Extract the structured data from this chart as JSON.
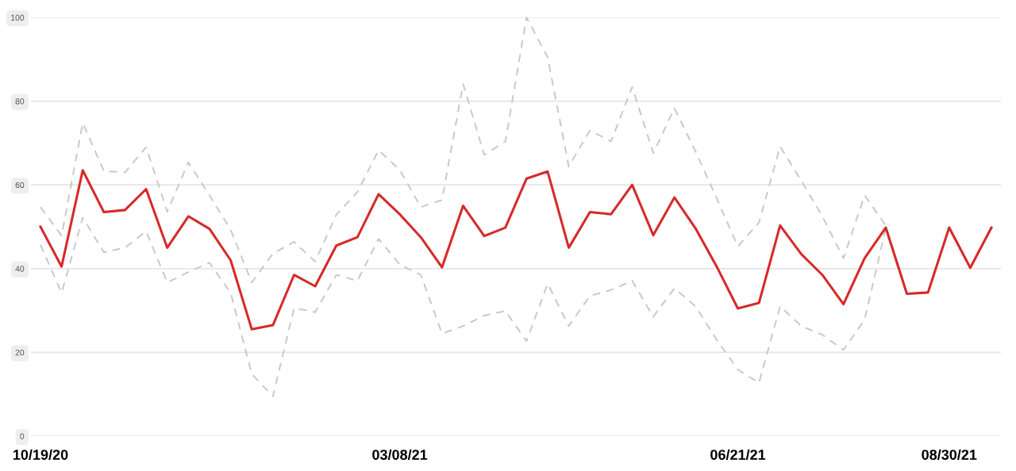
{
  "chart_data": {
    "type": "line",
    "categories": [
      "10/19/20",
      null,
      null,
      null,
      null,
      null,
      null,
      null,
      null,
      null,
      null,
      null,
      null,
      null,
      null,
      null,
      null,
      "03/08/21",
      null,
      null,
      null,
      null,
      null,
      null,
      null,
      null,
      null,
      null,
      null,
      null,
      null,
      null,
      null,
      "06/21/21",
      null,
      null,
      null,
      null,
      null,
      null,
      null,
      null,
      null,
      "08/30/21",
      null,
      null
    ],
    "series": [
      {
        "color": "#c8c8c8",
        "line_style": "dashed",
        "values": [
          54.7,
          47.9,
          74.8,
          63.3,
          63,
          69,
          53.6,
          65.4,
          57.5,
          49.3,
          36.7,
          43.6,
          46.4,
          41.7,
          52.9,
          58.3,
          68.3,
          63.6,
          54.7,
          56.4,
          84.1,
          67.2,
          70.4,
          100,
          90.5,
          64.4,
          73,
          70.4,
          83.4,
          67.6,
          78.3,
          68,
          56.8,
          45.3,
          51,
          69.2,
          61,
          52.5,
          42.5,
          57.5,
          50.3,
          34,
          34.3,
          49.8,
          40.2,
          49.8
        ]
      },
      {
        "color": "#c8c8c8",
        "line_style": "dashed",
        "values": [
          45.7,
          34.2,
          52.2,
          43.9,
          45,
          48.9,
          36.7,
          39.2,
          41.4,
          34.2,
          14.8,
          9.5,
          30.6,
          29.6,
          38.5,
          37.1,
          47.1,
          41,
          38.5,
          24.5,
          26.3,
          28.8,
          29.9,
          22.7,
          36.4,
          26.3,
          33.5,
          34.9,
          37.1,
          28.5,
          35.3,
          31,
          23,
          15.9,
          12.7,
          31,
          26.3,
          24.2,
          20.6,
          27.8,
          49.6,
          34,
          34.3,
          49.8,
          40.2,
          49.8
        ]
      },
      {
        "color": "#d62a2a",
        "line_style": "solid",
        "values": [
          50,
          40.5,
          63.5,
          53.5,
          54,
          59,
          45,
          52.5,
          49.5,
          42,
          25.5,
          26.5,
          38.5,
          35.8,
          45.5,
          47.5,
          57.8,
          53,
          47.5,
          40.3,
          55,
          47.8,
          49.8,
          61.5,
          63.2,
          45,
          53.5,
          53,
          60,
          48,
          57,
          49.6,
          40.5,
          30.5,
          31.8,
          50.3,
          43.5,
          38.5,
          31.5,
          42.5,
          49.8,
          34,
          34.3,
          49.8,
          40.2,
          49.8
        ]
      }
    ],
    "ylim": [
      0,
      100
    ],
    "yticks": [
      0,
      20,
      40,
      60,
      80,
      100
    ],
    "grid": "y",
    "marker": "none"
  }
}
